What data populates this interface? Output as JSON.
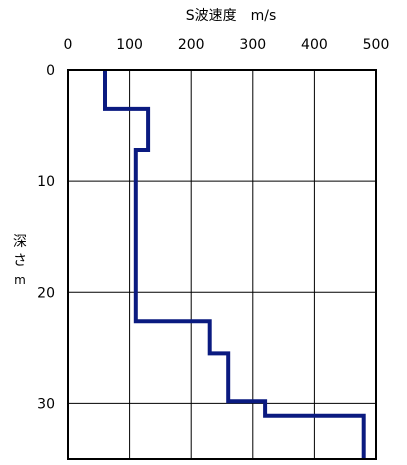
{
  "chart_data": {
    "type": "line",
    "title": "",
    "xlabel": "S波速度　m/s",
    "ylabel_chars": [
      "深",
      "さ",
      "m"
    ],
    "xlim": [
      0,
      500
    ],
    "ylim": [
      0,
      35
    ],
    "y_inverted": true,
    "x_axis_position": "top",
    "xticks": [
      0,
      100,
      200,
      300,
      400,
      500
    ],
    "yticks": [
      0,
      10,
      20,
      30
    ],
    "grid": true,
    "line_style": "step",
    "colors": {
      "line": "#0a1a80",
      "grid": "#000000",
      "frame": "#000000"
    },
    "series": [
      {
        "x": [
          60,
          60,
          130,
          130,
          110,
          110,
          230,
          230,
          260,
          260,
          320,
          320,
          480,
          480
        ],
        "y": [
          0,
          3.5,
          3.5,
          7.2,
          7.2,
          22.6,
          22.6,
          25.5,
          25.5,
          29.8,
          29.8,
          31.1,
          31.1,
          35
        ]
      }
    ]
  }
}
